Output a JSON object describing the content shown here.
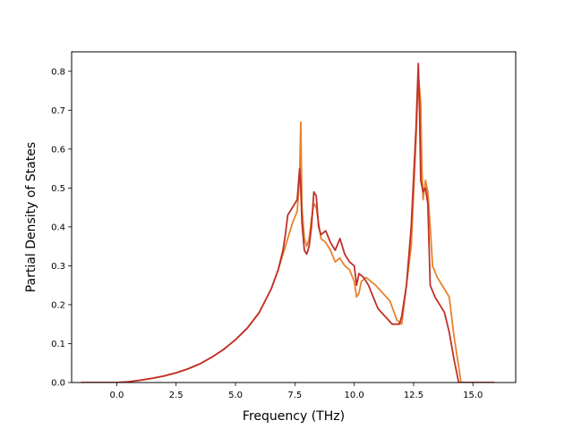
{
  "chart_data": {
    "type": "line",
    "title": "",
    "xlabel": "Frequency (THz)",
    "ylabel": "Partial Density of States",
    "xlim": [
      -1.9,
      16.8
    ],
    "ylim": [
      0.0,
      0.85
    ],
    "xticks": [
      0.0,
      2.5,
      5.0,
      7.5,
      10.0,
      12.5,
      15.0
    ],
    "xtick_labels": [
      "0.0",
      "2.5",
      "5.0",
      "7.5",
      "10.0",
      "12.5",
      "15.0"
    ],
    "yticks": [
      0.0,
      0.1,
      0.2,
      0.3,
      0.4,
      0.5,
      0.6,
      0.7,
      0.8
    ],
    "ytick_labels": [
      "0.0",
      "0.1",
      "0.2",
      "0.3",
      "0.4",
      "0.5",
      "0.6",
      "0.7",
      "0.8"
    ],
    "grid": false,
    "legend": "none",
    "series": [
      {
        "color": "#e8822a",
        "x": [
          -1.5,
          -0.5,
          0.0,
          0.5,
          1.0,
          1.5,
          2.0,
          2.5,
          3.0,
          3.5,
          4.0,
          4.5,
          5.0,
          5.5,
          6.0,
          6.5,
          6.8,
          7.0,
          7.2,
          7.4,
          7.6,
          7.7,
          7.75,
          7.8,
          7.9,
          8.0,
          8.1,
          8.2,
          8.3,
          8.4,
          8.5,
          8.6,
          8.8,
          9.0,
          9.2,
          9.4,
          9.6,
          9.8,
          10.0,
          10.1,
          10.2,
          10.3,
          10.5,
          10.7,
          10.9,
          11.2,
          11.5,
          11.8,
          12.0,
          12.2,
          12.4,
          12.6,
          12.7,
          12.8,
          12.85,
          12.9,
          13.0,
          13.1,
          13.2,
          13.3,
          13.5,
          13.8,
          14.0,
          14.2,
          14.4,
          14.5,
          15.0,
          15.5,
          15.9
        ],
        "y": [
          0.0,
          0.0,
          0.0,
          0.002,
          0.006,
          0.011,
          0.017,
          0.025,
          0.035,
          0.048,
          0.065,
          0.085,
          0.11,
          0.14,
          0.18,
          0.24,
          0.29,
          0.33,
          0.37,
          0.41,
          0.44,
          0.53,
          0.67,
          0.45,
          0.37,
          0.35,
          0.37,
          0.42,
          0.46,
          0.45,
          0.41,
          0.37,
          0.36,
          0.34,
          0.31,
          0.32,
          0.3,
          0.29,
          0.26,
          0.22,
          0.23,
          0.26,
          0.27,
          0.26,
          0.25,
          0.23,
          0.21,
          0.16,
          0.15,
          0.25,
          0.35,
          0.62,
          0.79,
          0.72,
          0.55,
          0.47,
          0.52,
          0.49,
          0.4,
          0.3,
          0.27,
          0.24,
          0.22,
          0.12,
          0.04,
          0.0,
          0.0,
          0.0,
          0.0
        ]
      },
      {
        "color": "#c0302a",
        "x": [
          -1.5,
          -0.5,
          0.0,
          0.5,
          1.0,
          1.5,
          2.0,
          2.5,
          3.0,
          3.5,
          4.0,
          4.5,
          5.0,
          5.5,
          6.0,
          6.5,
          6.8,
          7.0,
          7.1,
          7.2,
          7.4,
          7.6,
          7.7,
          7.75,
          7.8,
          7.9,
          8.0,
          8.1,
          8.2,
          8.3,
          8.4,
          8.5,
          8.6,
          8.8,
          9.0,
          9.2,
          9.4,
          9.6,
          9.8,
          10.0,
          10.1,
          10.2,
          10.4,
          10.6,
          10.8,
          11.0,
          11.3,
          11.6,
          11.9,
          12.0,
          12.2,
          12.4,
          12.6,
          12.7,
          12.75,
          12.8,
          12.9,
          13.0,
          13.1,
          13.2,
          13.4,
          13.6,
          13.8,
          14.0,
          14.2,
          14.4,
          14.5,
          15.0,
          15.5,
          15.9
        ],
        "y": [
          0.0,
          0.0,
          0.0,
          0.002,
          0.006,
          0.011,
          0.017,
          0.025,
          0.035,
          0.048,
          0.065,
          0.085,
          0.11,
          0.14,
          0.18,
          0.24,
          0.29,
          0.34,
          0.38,
          0.43,
          0.45,
          0.47,
          0.55,
          0.5,
          0.41,
          0.34,
          0.33,
          0.35,
          0.4,
          0.49,
          0.48,
          0.4,
          0.38,
          0.39,
          0.36,
          0.34,
          0.37,
          0.33,
          0.31,
          0.3,
          0.25,
          0.28,
          0.27,
          0.25,
          0.22,
          0.19,
          0.17,
          0.15,
          0.15,
          0.17,
          0.25,
          0.4,
          0.65,
          0.82,
          0.7,
          0.52,
          0.49,
          0.5,
          0.46,
          0.25,
          0.22,
          0.2,
          0.18,
          0.13,
          0.06,
          0.0,
          0.0,
          0.0,
          0.0,
          0.0
        ]
      }
    ]
  }
}
